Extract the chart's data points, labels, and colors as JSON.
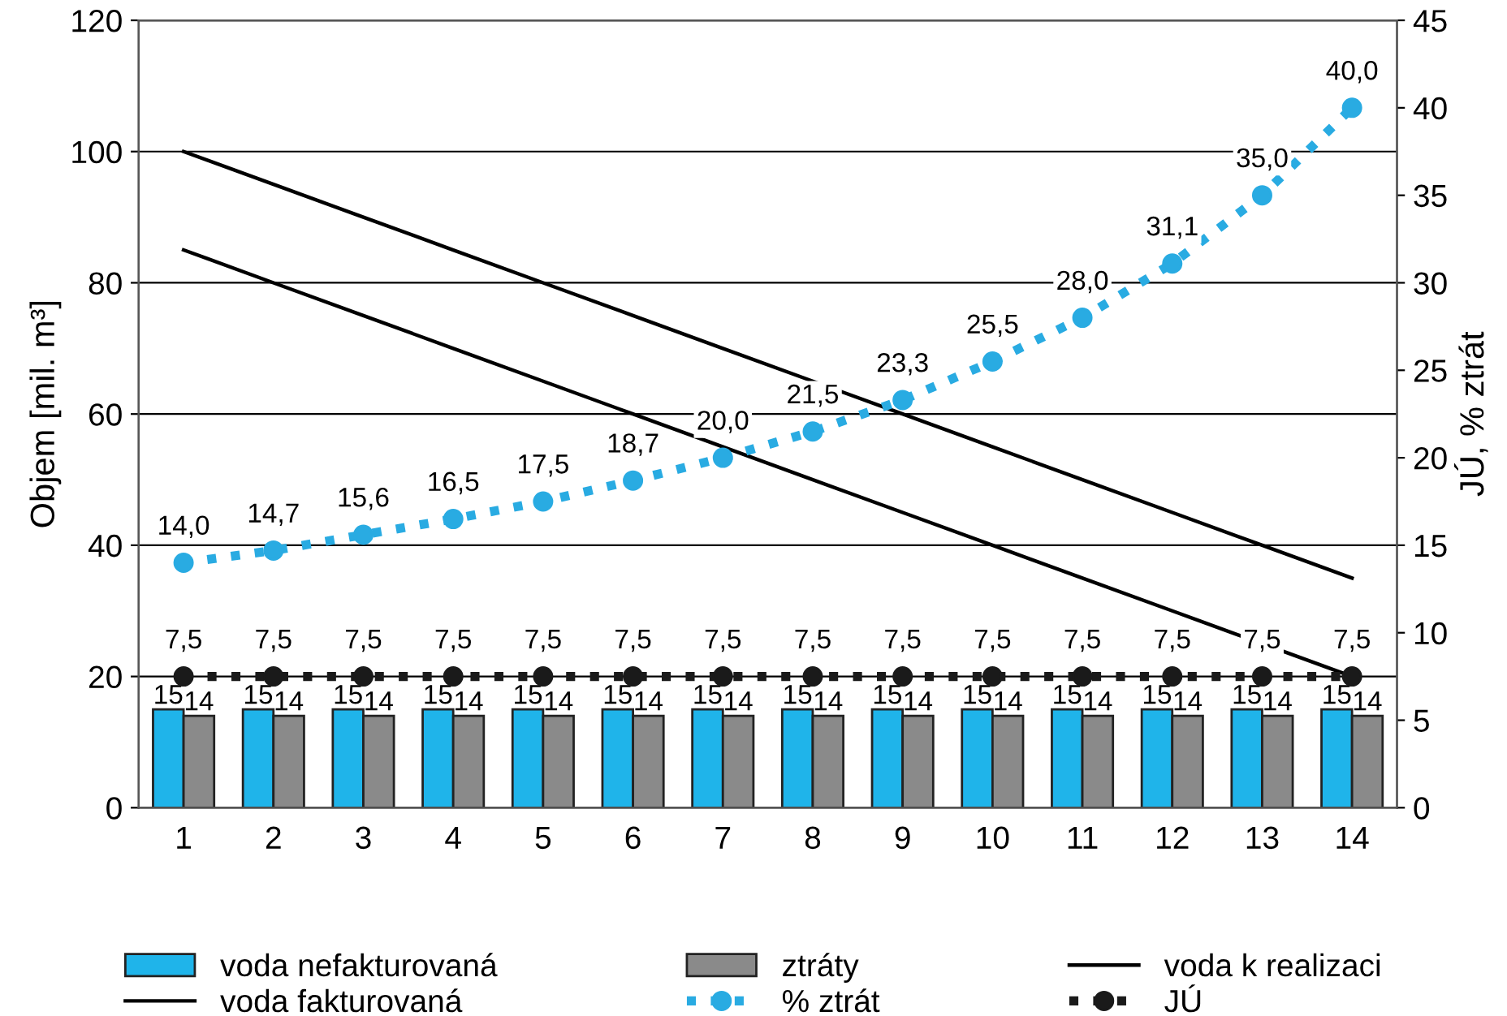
{
  "chart_data": {
    "type": "bar",
    "ylabel": "Objem [mil. m³]",
    "y2label": "JÚ, % ztrát",
    "categories": [
      "1",
      "2",
      "3",
      "4",
      "5",
      "6",
      "7",
      "8",
      "9",
      "10",
      "11",
      "12",
      "13",
      "14"
    ],
    "ylim": [
      0,
      120
    ],
    "yticks": [
      0,
      20,
      40,
      60,
      80,
      100,
      120
    ],
    "y2lim": [
      0,
      45
    ],
    "y2ticks": [
      0,
      5,
      10,
      15,
      20,
      25,
      30,
      35,
      40,
      45
    ],
    "grid": "y",
    "legend": "bottom",
    "series": [
      {
        "name": "voda nefakturovaná",
        "color": "#1fb4ea",
        "values": [
          15,
          15,
          15,
          15,
          15,
          15,
          15,
          15,
          15,
          15,
          15,
          15,
          15,
          15
        ],
        "value_labels": [
          "15",
          "15",
          "15",
          "15",
          "15",
          "15",
          "15",
          "15",
          "15",
          "15",
          "15",
          "15",
          "15",
          "15"
        ]
      },
      {
        "name": "ztráty",
        "color": "#8a8a8a",
        "values": [
          14,
          14,
          14,
          14,
          14,
          14,
          14,
          14,
          14,
          14,
          14,
          14,
          14,
          14
        ],
        "value_labels": [
          "14",
          "14",
          "14",
          "14",
          "14",
          "14",
          "14",
          "14",
          "14",
          "14",
          "14",
          "14",
          "14",
          "14"
        ]
      },
      {
        "name": "voda k realizaci",
        "type": "line",
        "color": "#000000",
        "marker": "none",
        "line_style": "solid",
        "values": [
          100,
          95,
          90,
          85,
          80,
          75,
          70,
          65,
          60,
          55,
          50,
          45,
          40,
          35
        ]
      },
      {
        "name": "voda fakturovaná",
        "type": "line",
        "color": "#000000",
        "marker": "none",
        "line_style": "solid",
        "values": [
          85,
          80,
          75,
          70,
          65,
          60,
          55,
          50,
          45,
          40,
          35,
          30,
          25,
          20
        ]
      },
      {
        "name": "% ztrát",
        "type": "line",
        "axis": "y2",
        "color": "#29abe2",
        "marker": "circle",
        "line_style": "dotted",
        "values": [
          14.0,
          14.7,
          15.6,
          16.5,
          17.5,
          18.7,
          20.0,
          21.5,
          23.3,
          25.5,
          28.0,
          31.1,
          35.0,
          40.0
        ],
        "value_labels": [
          "14,0",
          "14,7",
          "15,6",
          "16,5",
          "17,5",
          "18,7",
          "20,0",
          "21,5",
          "23,3",
          "25,5",
          "28,0",
          "31,1",
          "35,0",
          "40,0"
        ]
      },
      {
        "name": "JÚ",
        "type": "line",
        "axis": "y2",
        "color": "#1a1a1a",
        "marker": "circle",
        "line_style": "dotted",
        "values": [
          7.5,
          7.5,
          7.5,
          7.5,
          7.5,
          7.5,
          7.5,
          7.5,
          7.5,
          7.5,
          7.5,
          7.5,
          7.5,
          7.5
        ],
        "value_labels": [
          "7,5",
          "7,5",
          "7,5",
          "7,5",
          "7,5",
          "7,5",
          "7,5",
          "7,5",
          "7,5",
          "7,5",
          "7,5",
          "7,5",
          "7,5",
          "7,5"
        ]
      }
    ]
  }
}
